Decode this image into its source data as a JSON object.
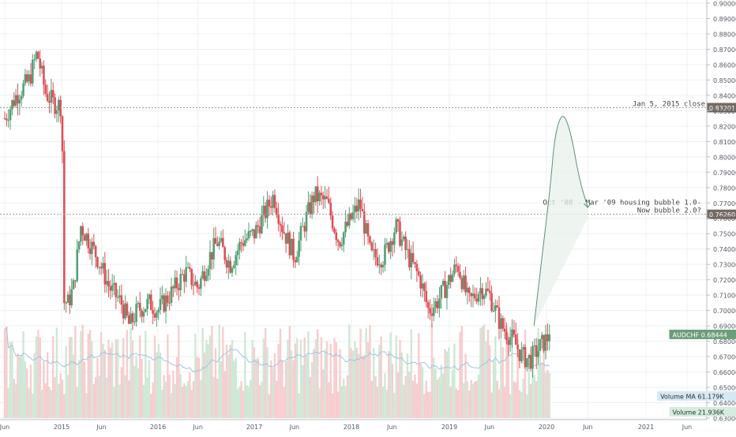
{
  "chart_data": {
    "type": "candlestick",
    "symbol": "AUDCHF",
    "timeframe": "weekly",
    "grid": true,
    "scale_label": "",
    "y_axis": {
      "position": "right",
      "range": [
        0.63,
        0.9
      ],
      "ticks": [
        "0.63000",
        "0.64000",
        "0.65000",
        "0.66000",
        "0.67000",
        "0.68000",
        "0.69000",
        "0.70000",
        "0.71000",
        "0.72000",
        "0.73000",
        "0.74000",
        "0.75000",
        "0.76000",
        "0.77000",
        "0.78000",
        "0.79000",
        "0.80000",
        "0.81000",
        "0.82000",
        "0.83000",
        "0.84000",
        "0.85000",
        "0.86000",
        "0.87000",
        "0.88000",
        "0.89000",
        "0.90000"
      ]
    },
    "x_axis": {
      "ticks": [
        {
          "label": "Jun",
          "date": "2014-06-01"
        },
        {
          "label": "2015",
          "date": "2015-01-01"
        },
        {
          "label": "Jun",
          "date": "2015-06-01"
        },
        {
          "label": "2016",
          "date": "2016-01-01"
        },
        {
          "label": "Jun",
          "date": "2016-06-01"
        },
        {
          "label": "2017",
          "date": "2017-01-01"
        },
        {
          "label": "Jun",
          "date": "2017-06-01"
        },
        {
          "label": "2018",
          "date": "2018-01-01"
        },
        {
          "label": "Jun",
          "date": "2018-06-01"
        },
        {
          "label": "2019",
          "date": "2019-01-01"
        },
        {
          "label": "Jun",
          "date": "2019-06-01"
        },
        {
          "label": "2020",
          "date": "2020-01-01"
        },
        {
          "label": "Jun",
          "date": "2020-06-01"
        },
        {
          "label": "2021",
          "date": "2021-01-01"
        },
        {
          "label": "Jun",
          "date": "2021-06-01"
        }
      ]
    },
    "price_path": [
      [
        "2014-06-01",
        0.825
      ],
      [
        "2014-07-15",
        0.84
      ],
      [
        "2014-09-01",
        0.85
      ],
      [
        "2014-10-01",
        0.868
      ],
      [
        "2014-11-01",
        0.842
      ],
      [
        "2014-12-01",
        0.835
      ],
      [
        "2015-01-01",
        0.833
      ],
      [
        "2015-01-15",
        0.7
      ],
      [
        "2015-02-15",
        0.715
      ],
      [
        "2015-03-15",
        0.755
      ],
      [
        "2015-04-15",
        0.745
      ],
      [
        "2015-05-15",
        0.735
      ],
      [
        "2015-07-01",
        0.715
      ],
      [
        "2015-08-15",
        0.705
      ],
      [
        "2015-09-15",
        0.69
      ],
      [
        "2015-10-15",
        0.7
      ],
      [
        "2015-12-01",
        0.705
      ],
      [
        "2016-01-01",
        0.7
      ],
      [
        "2016-02-15",
        0.71
      ],
      [
        "2016-04-15",
        0.725
      ],
      [
        "2016-06-01",
        0.715
      ],
      [
        "2016-07-15",
        0.735
      ],
      [
        "2016-08-15",
        0.745
      ],
      [
        "2016-10-01",
        0.73
      ],
      [
        "2016-11-15",
        0.745
      ],
      [
        "2017-01-01",
        0.75
      ],
      [
        "2017-02-15",
        0.765
      ],
      [
        "2017-03-15",
        0.775
      ],
      [
        "2017-04-15",
        0.755
      ],
      [
        "2017-06-01",
        0.735
      ],
      [
        "2017-07-15",
        0.76
      ],
      [
        "2017-08-15",
        0.775
      ],
      [
        "2017-10-01",
        0.77
      ],
      [
        "2017-11-15",
        0.745
      ],
      [
        "2018-01-01",
        0.76
      ],
      [
        "2018-02-01",
        0.77
      ],
      [
        "2018-03-15",
        0.735
      ],
      [
        "2018-05-01",
        0.735
      ],
      [
        "2018-06-15",
        0.755
      ],
      [
        "2018-08-01",
        0.735
      ],
      [
        "2018-09-15",
        0.72
      ],
      [
        "2018-10-15",
        0.7
      ],
      [
        "2018-11-15",
        0.705
      ],
      [
        "2019-01-01",
        0.72
      ],
      [
        "2019-02-01",
        0.73
      ],
      [
        "2019-03-15",
        0.705
      ],
      [
        "2019-05-01",
        0.715
      ],
      [
        "2019-06-01",
        0.71
      ],
      [
        "2019-07-15",
        0.69
      ],
      [
        "2019-09-01",
        0.68
      ],
      [
        "2019-10-01",
        0.67
      ],
      [
        "2019-11-01",
        0.668
      ],
      [
        "2019-12-15",
        0.678
      ],
      [
        "2020-01-15",
        0.684
      ]
    ],
    "close": 0.68444,
    "reference_lines": [
      {
        "value": 0.83201,
        "label": "0.83201",
        "annotation": "Jan 5, 2015 close"
      },
      {
        "value": 0.7626,
        "label": "0.76260",
        "annotation_lines": [
          "Oct '08 - Mar '09 housing bubble 1.0-",
          "Now bubble 2.0?"
        ]
      }
    ],
    "projection_path": [
      [
        "2019-11-15",
        0.69
      ],
      [
        "2019-12-15",
        0.735
      ],
      [
        "2020-01-15",
        0.78
      ],
      [
        "2020-02-01",
        0.815
      ],
      [
        "2020-03-01",
        0.83
      ],
      [
        "2020-04-01",
        0.815
      ],
      [
        "2020-05-01",
        0.785
      ],
      [
        "2020-06-01",
        0.767
      ]
    ],
    "price_labels": [
      {
        "text": "AUDCHF",
        "value": "0.68444",
        "color": "#6b9e7b"
      },
      {
        "text": "Volume MA",
        "value": "61.179K",
        "color": "#d6e8f2"
      },
      {
        "text": "Volume",
        "value": "21.936K",
        "color": "#d6ecdd"
      }
    ],
    "colors": {
      "up": "#53a074",
      "down": "#df4f56",
      "volume_up": "#cfe8d6",
      "volume_down": "#f7cdd0",
      "projection": "#5f8f78",
      "ref_line": "#9c9c9c",
      "ref_label_bg": "#756a63"
    }
  }
}
